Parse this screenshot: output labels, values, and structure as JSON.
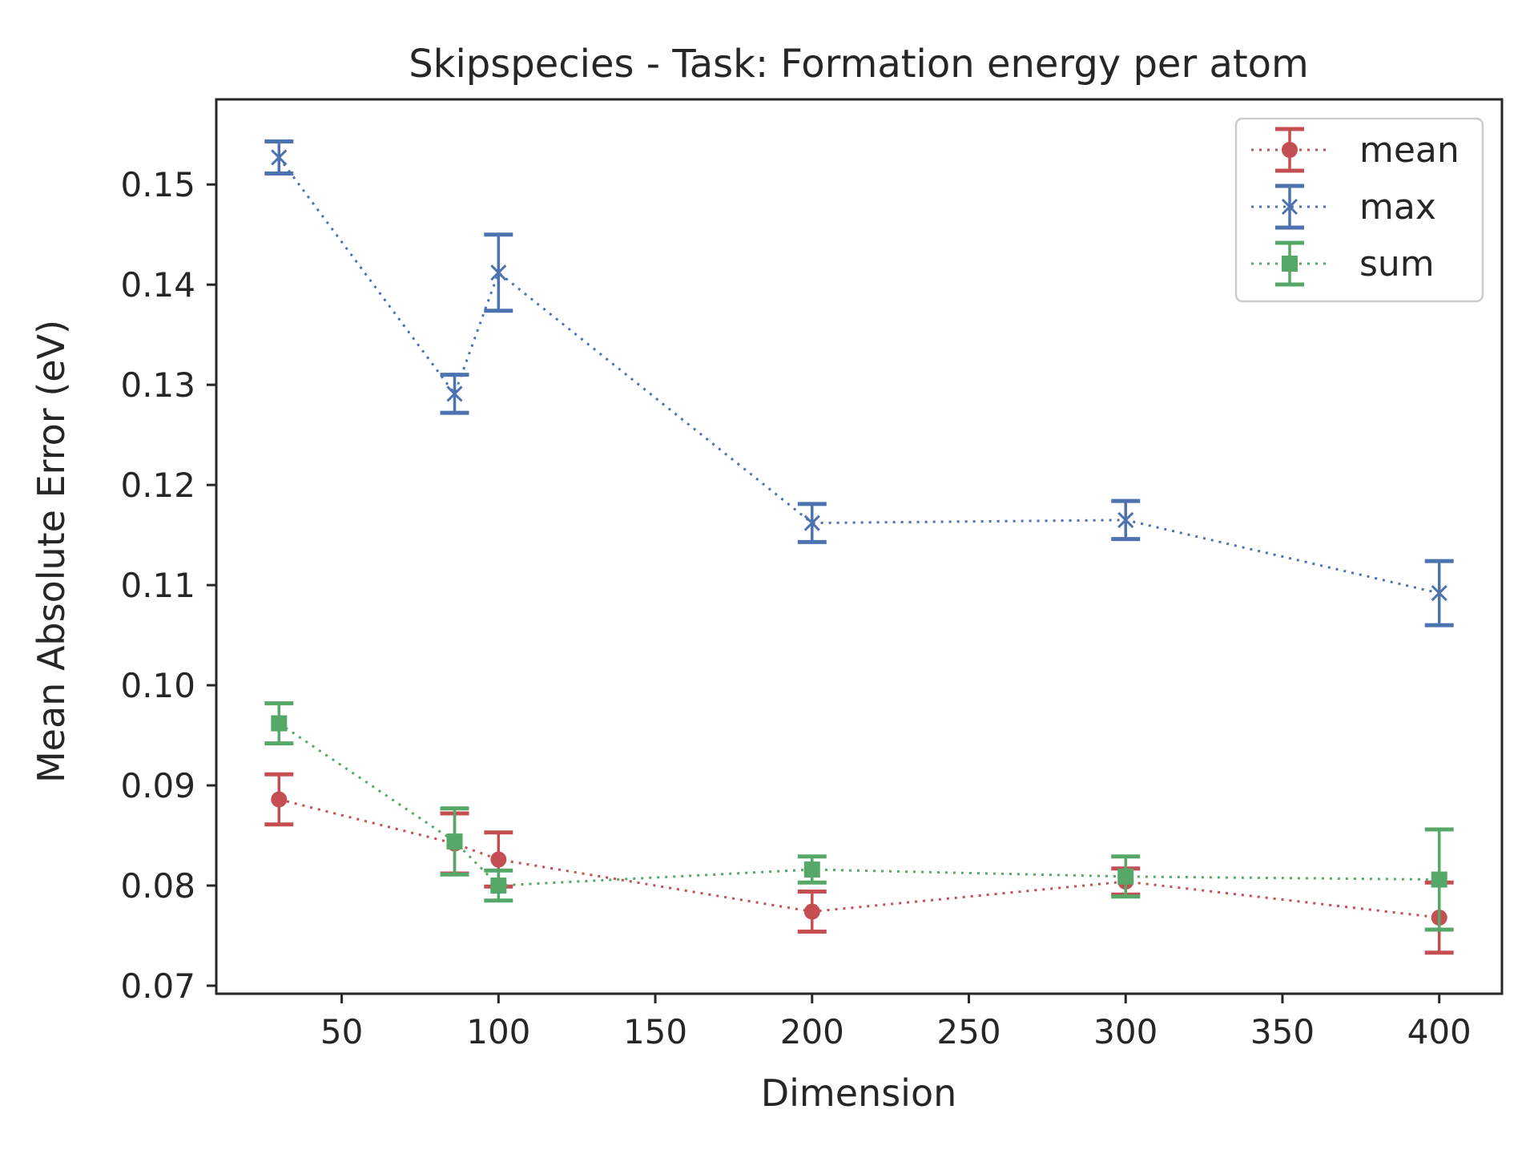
{
  "chart_data": {
    "type": "line",
    "title": "Skipspecies - Task: Formation energy per atom",
    "xlabel": "Dimension",
    "ylabel": "Mean Absolute Error (eV)",
    "xlim": [
      10,
      420
    ],
    "ylim": [
      0.0692,
      0.1585
    ],
    "xticks": [
      50,
      100,
      150,
      200,
      250,
      300,
      350,
      400
    ],
    "yticks": [
      0.07,
      0.08,
      0.09,
      0.1,
      0.11,
      0.12,
      0.13,
      0.14,
      0.15
    ],
    "ytick_labels": [
      "0.07",
      "0.08",
      "0.09",
      "0.10",
      "0.11",
      "0.12",
      "0.13",
      "0.14",
      "0.15"
    ],
    "grid": false,
    "legend": "top-right",
    "series": [
      {
        "name": "mean",
        "color": "#c44e52",
        "marker": "circle",
        "x": [
          30,
          86,
          100,
          200,
          300,
          400
        ],
        "y": [
          0.0886,
          0.0842,
          0.0826,
          0.0774,
          0.0804,
          0.0768
        ],
        "err": [
          0.0025,
          0.003,
          0.0027,
          0.002,
          0.0013,
          0.0035
        ]
      },
      {
        "name": "max",
        "color": "#4c72b0",
        "marker": "x",
        "x": [
          30,
          86,
          100,
          200,
          300,
          400
        ],
        "y": [
          0.1527,
          0.1291,
          0.1412,
          0.1162,
          0.1165,
          0.1092
        ],
        "err": [
          0.0016,
          0.0019,
          0.0038,
          0.0019,
          0.0019,
          0.0032
        ]
      },
      {
        "name": "sum",
        "color": "#55a868",
        "marker": "square",
        "x": [
          30,
          86,
          100,
          200,
          300,
          400
        ],
        "y": [
          0.0962,
          0.0844,
          0.08,
          0.0816,
          0.0809,
          0.0806
        ],
        "err": [
          0.002,
          0.0033,
          0.0015,
          0.0013,
          0.002,
          0.005
        ]
      }
    ]
  }
}
